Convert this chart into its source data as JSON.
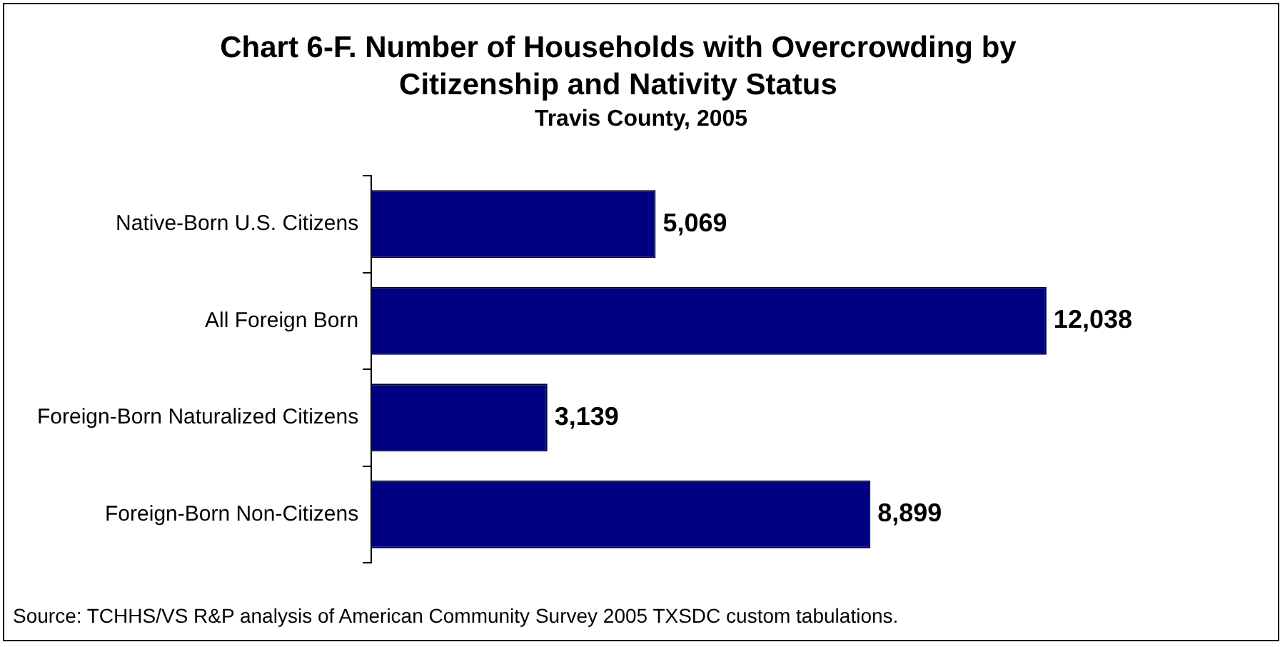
{
  "chart_data": {
    "type": "bar",
    "title": "Chart 6-F.  Number of Households with Overcrowding by Citizenship and Nativity Status",
    "subtitle": "Travis County, 2005",
    "orientation": "horizontal",
    "categories": [
      "Native-Born U.S. Citizens",
      "All Foreign Born",
      "Foreign-Born Naturalized Citizens",
      "Foreign-Born Non-Citizens"
    ],
    "values": [
      5069,
      12038,
      3139,
      8899
    ],
    "color": "#000080",
    "value_labels": [
      "5,069",
      "12,038",
      "3,139",
      "8,899"
    ],
    "grid": false,
    "legend": false,
    "annotations": [
      "Source: TCHHS/VS R&P analysis of American Community Survey 2005 TXSDC custom tabulations."
    ]
  }
}
